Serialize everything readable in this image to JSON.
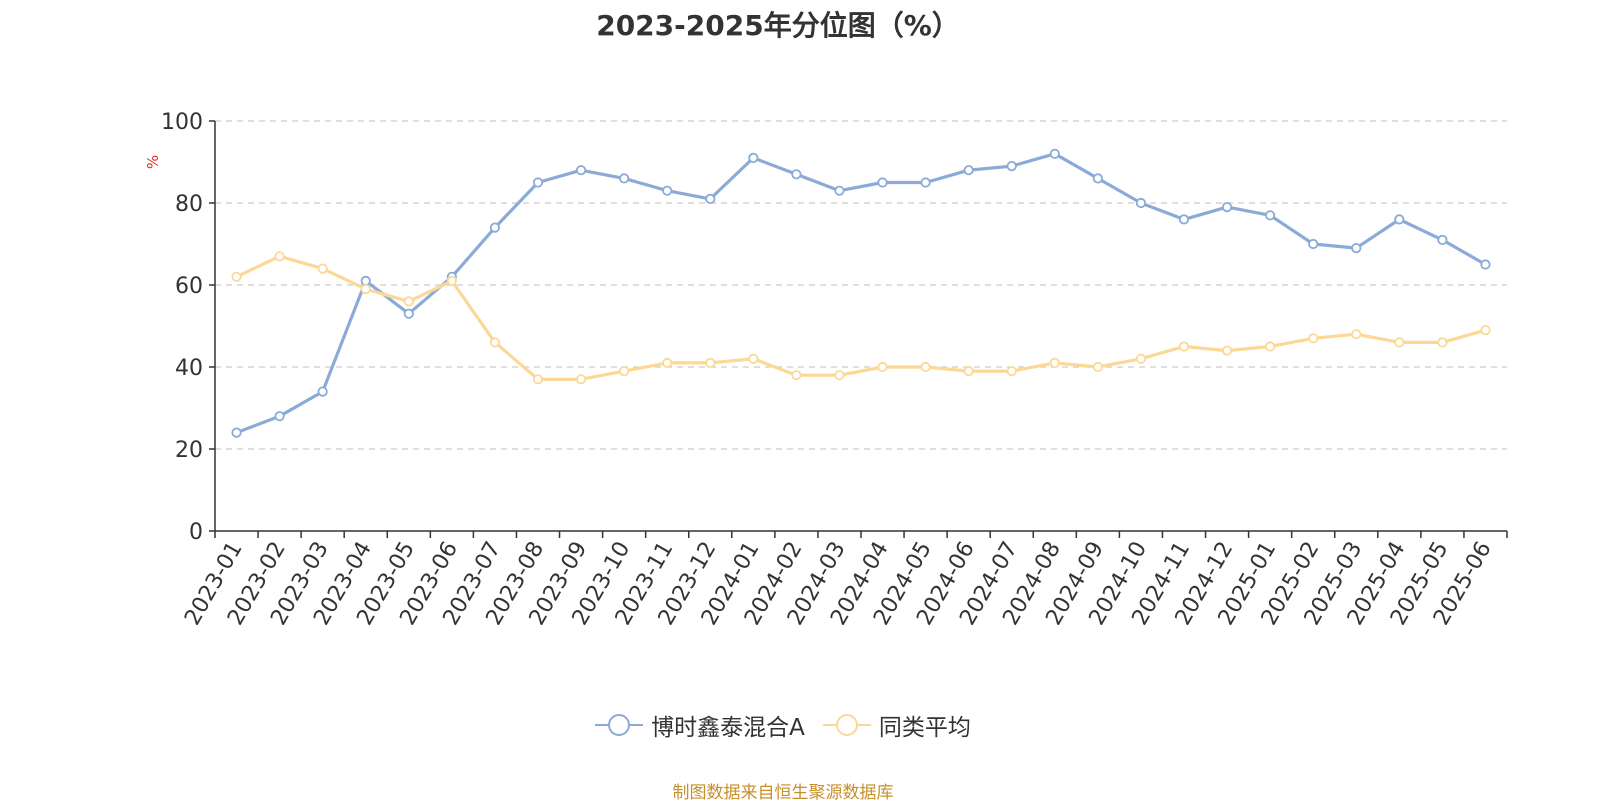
{
  "chart_data": {
    "type": "line",
    "title": "2023-2025年分位图（%）",
    "ylabel": "%",
    "xlabel": "",
    "ylim": [
      0,
      100
    ],
    "yticks": [
      0,
      20,
      40,
      60,
      80,
      100
    ],
    "grid": true,
    "legend_position": "bottom",
    "categories": [
      "2023-01",
      "2023-02",
      "2023-03",
      "2023-04",
      "2023-05",
      "2023-06",
      "2023-07",
      "2023-08",
      "2023-09",
      "2023-10",
      "2023-11",
      "2023-12",
      "2024-01",
      "2024-02",
      "2024-03",
      "2024-04",
      "2024-05",
      "2024-06",
      "2024-07",
      "2024-08",
      "2024-09",
      "2024-10",
      "2024-11",
      "2024-12",
      "2025-01",
      "2025-02",
      "2025-03",
      "2025-04",
      "2025-05",
      "2025-06"
    ],
    "series": [
      {
        "name": "博时鑫泰混合A",
        "color": "#8aaad8",
        "values": [
          24,
          28,
          34,
          61,
          53,
          62,
          74,
          85,
          88,
          86,
          83,
          81,
          91,
          87,
          83,
          85,
          85,
          88,
          89,
          92,
          86,
          80,
          76,
          79,
          77,
          70,
          69,
          76,
          71,
          65
        ]
      },
      {
        "name": "同类平均",
        "color": "#fcd896",
        "values": [
          62,
          67,
          64,
          59,
          56,
          61,
          46,
          37,
          37,
          39,
          41,
          41,
          42,
          38,
          38,
          40,
          40,
          39,
          39,
          41,
          40,
          42,
          45,
          44,
          45,
          47,
          48,
          46,
          46,
          49
        ]
      }
    ]
  },
  "source_note": "制图数据来自恒生聚源数据库",
  "colors": {
    "ylabel": "#e03030",
    "grid": "#cccccc",
    "axis": "#333333",
    "source": "#c8902a"
  }
}
